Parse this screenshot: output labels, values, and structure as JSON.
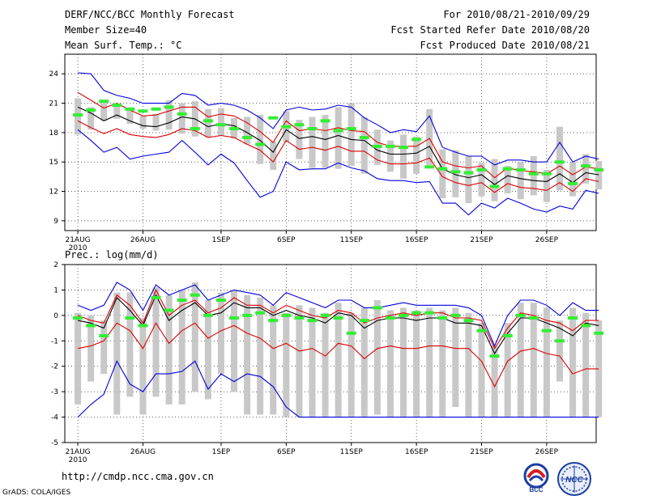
{
  "header": {
    "title": "DERF/NCC/BCC Monthly Forecast",
    "member_size": "Member Size=40",
    "variable": "Mean Surf. Temp.: °C",
    "period": "For 2010/08/21-2010/09/29",
    "started": "Fcst Started Refer Date 2010/08/20",
    "produced": "Fcst Produced Date 2010/08/21"
  },
  "precip_label": "Prec.: log(mm/d)",
  "url": "http://cmdp.ncc.cma.gov.cn",
  "credit": "GrADS: COLA/IGES",
  "logos": {
    "bcc": "BCC",
    "ncc": "NCC"
  },
  "colors": {
    "ensemble": "#000000",
    "spread": "#dd0000",
    "range": "#0000dd",
    "obs": "#33ee33",
    "box": "#c8c8c8"
  },
  "chart_data": [
    {
      "type": "line",
      "title": "Mean Surf. Temp.: °C",
      "x_labels": [
        {
          "day": 0,
          "text": "21AUG"
        },
        {
          "day": 5,
          "text": "26AUG"
        },
        {
          "day": 11,
          "text": "1SEP"
        },
        {
          "day": 16,
          "text": "6SEP"
        },
        {
          "day": 21,
          "text": "11SEP"
        },
        {
          "day": 26,
          "text": "16SEP"
        },
        {
          "day": 31,
          "text": "21SEP"
        },
        {
          "day": 36,
          "text": "26SEP"
        }
      ],
      "x_year": "2010",
      "xlim": [
        -1,
        39.8
      ],
      "ylim": [
        8,
        26
      ],
      "yticks": [
        9,
        12,
        15,
        18,
        21,
        24
      ],
      "series": [
        {
          "name": "ensemble mean",
          "values": [
            20.6,
            20.0,
            19.2,
            19.8,
            19.2,
            18.7,
            18.6,
            19.0,
            19.6,
            19.4,
            18.6,
            18.9,
            18.7,
            18.0,
            17.2,
            16.0,
            18.3,
            17.4,
            17.6,
            17.3,
            17.7,
            17.3,
            17.2,
            16.2,
            15.8,
            15.8,
            15.9,
            16.6,
            14.3,
            13.7,
            13.4,
            13.7,
            12.7,
            13.6,
            13.3,
            13.1,
            13.0,
            13.8,
            12.9,
            13.9,
            13.7
          ]
        },
        {
          "name": "upper spread",
          "values": [
            22.1,
            21.3,
            20.5,
            21.0,
            20.3,
            19.7,
            19.8,
            20.2,
            20.6,
            20.6,
            19.6,
            19.9,
            19.7,
            19.0,
            18.1,
            17.0,
            19.2,
            18.2,
            18.4,
            18.2,
            18.5,
            18.2,
            18.1,
            17.0,
            16.6,
            16.6,
            16.6,
            17.4,
            15.0,
            14.6,
            14.4,
            14.6,
            13.4,
            14.4,
            14.1,
            14.0,
            13.8,
            14.6,
            13.7,
            14.5,
            14.3
          ]
        },
        {
          "name": "lower spread",
          "values": [
            19.2,
            18.5,
            17.9,
            18.4,
            17.8,
            17.6,
            17.5,
            17.8,
            18.4,
            18.2,
            17.5,
            17.7,
            17.5,
            16.8,
            16.2,
            15.0,
            17.2,
            16.3,
            16.5,
            16.2,
            16.6,
            16.1,
            16.1,
            15.2,
            14.8,
            14.8,
            14.9,
            15.4,
            13.5,
            12.9,
            12.6,
            12.9,
            11.9,
            12.8,
            12.4,
            12.3,
            12.1,
            12.9,
            12.0,
            13.3,
            13.0
          ]
        },
        {
          "name": "max member",
          "values": [
            24.1,
            24.0,
            22.3,
            21.8,
            21.5,
            21.0,
            21.0,
            21.0,
            22.0,
            21.8,
            20.8,
            21.0,
            20.8,
            20.3,
            19.5,
            18.4,
            20.3,
            20.6,
            20.3,
            20.4,
            20.8,
            20.6,
            19.5,
            18.8,
            18.0,
            18.3,
            18.1,
            19.7,
            16.5,
            16.0,
            15.6,
            15.6,
            14.7,
            15.2,
            15.2,
            15.0,
            15.0,
            17.0,
            15.0,
            15.6,
            15.3
          ]
        },
        {
          "name": "min member",
          "values": [
            18.3,
            17.2,
            16.0,
            16.5,
            15.3,
            15.6,
            15.8,
            16.0,
            17.2,
            16.0,
            14.7,
            15.8,
            14.9,
            13.1,
            11.4,
            12.0,
            15.0,
            14.2,
            14.3,
            14.3,
            14.9,
            14.4,
            14.1,
            13.3,
            13.1,
            13.1,
            12.9,
            13.0,
            10.8,
            10.8,
            9.6,
            10.8,
            10.3,
            11.3,
            10.8,
            10.2,
            9.9,
            10.5,
            10.2,
            12.1,
            11.8
          ]
        },
        {
          "name": "observation",
          "values": [
            19.8,
            20.3,
            21.2,
            20.8,
            20.4,
            20.2,
            20.4,
            20.6,
            19.9,
            18.4,
            19.2,
            18.8,
            18.4,
            17.5,
            16.8,
            19.5,
            18.6,
            18.8,
            18.4,
            19.2,
            18.2,
            18.4,
            17.5,
            16.6,
            16.6,
            16.5,
            17.3,
            14.5,
            14.3,
            14.0,
            13.9,
            14.2,
            12.5,
            14.3,
            14.2,
            13.8,
            13.8,
            15.0,
            12.8,
            14.6,
            14.2
          ]
        }
      ],
      "boxes": [
        [
          17.8,
          21.5
        ],
        [
          18.3,
          20.6
        ],
        [
          19.2,
          21.0
        ],
        [
          19.4,
          20.8
        ],
        [
          18.9,
          20.3
        ],
        [
          18.4,
          19.7
        ],
        [
          18.2,
          19.9
        ],
        [
          18.3,
          21.3
        ],
        [
          17.9,
          21.0
        ],
        [
          17.6,
          21.2
        ],
        [
          17.5,
          20.4
        ],
        [
          17.7,
          20.5
        ],
        [
          17.4,
          19.5
        ],
        [
          16.8,
          19.6
        ],
        [
          14.8,
          19.8
        ],
        [
          14.2,
          17.1
        ],
        [
          17.0,
          20.2
        ],
        [
          15.3,
          19.3
        ],
        [
          14.4,
          19.6
        ],
        [
          14.4,
          19.8
        ],
        [
          14.3,
          20.6
        ],
        [
          14.6,
          21.0
        ],
        [
          13.8,
          19.6
        ],
        [
          14.7,
          18.3
        ],
        [
          14.0,
          17.2
        ],
        [
          13.3,
          17.8
        ],
        [
          13.8,
          17.6
        ],
        [
          14.7,
          20.4
        ],
        [
          11.3,
          16.3
        ],
        [
          11.4,
          16.2
        ],
        [
          10.8,
          15.6
        ],
        [
          11.5,
          14.9
        ],
        [
          11.0,
          15.3
        ],
        [
          11.8,
          14.6
        ],
        [
          11.2,
          15.0
        ],
        [
          11.6,
          15.6
        ],
        [
          10.9,
          14.2
        ],
        [
          12.1,
          18.6
        ],
        [
          11.5,
          15.0
        ],
        [
          12.8,
          15.8
        ],
        [
          12.2,
          15.1
        ]
      ]
    },
    {
      "type": "line",
      "title": "Prec.: log(mm/d)",
      "x_labels": [
        {
          "day": 0,
          "text": "21AUG"
        },
        {
          "day": 5,
          "text": "26AUG"
        },
        {
          "day": 11,
          "text": "1SEP"
        },
        {
          "day": 16,
          "text": "6SEP"
        },
        {
          "day": 21,
          "text": "11SEP"
        },
        {
          "day": 26,
          "text": "16SEP"
        },
        {
          "day": 31,
          "text": "21SEP"
        },
        {
          "day": 36,
          "text": "26SEP"
        }
      ],
      "x_year": "2010",
      "xlim": [
        -1,
        39.8
      ],
      "ylim": [
        -5,
        2
      ],
      "yticks": [
        -5,
        -4,
        -3,
        -2,
        -1,
        0,
        1,
        2
      ],
      "series": [
        {
          "name": "ensemble mean",
          "values": [
            -0.2,
            -0.3,
            -0.5,
            0.7,
            0.2,
            -0.4,
            0.8,
            -0.2,
            0.2,
            0.5,
            0.0,
            0.1,
            0.5,
            0.3,
            0.3,
            0.0,
            0.2,
            0.0,
            -0.1,
            -0.3,
            0.1,
            0.0,
            -0.5,
            -0.2,
            -0.1,
            -0.1,
            -0.2,
            -0.1,
            -0.1,
            -0.3,
            -0.3,
            -0.4,
            -1.5,
            -0.7,
            -0.1,
            -0.1,
            -0.3,
            -0.5,
            -0.8,
            -0.3,
            -0.4
          ]
        },
        {
          "name": "upper spread",
          "values": [
            0.0,
            -0.2,
            -0.3,
            0.8,
            0.4,
            -0.3,
            1.0,
            0.0,
            0.4,
            0.6,
            0.1,
            0.3,
            0.7,
            0.4,
            0.4,
            0.1,
            0.4,
            0.2,
            0.0,
            -0.1,
            0.2,
            0.1,
            -0.3,
            -0.1,
            0.0,
            0.1,
            0.0,
            0.1,
            0.1,
            -0.1,
            -0.1,
            -0.2,
            -1.3,
            -0.5,
            0.1,
            0.0,
            -0.2,
            -0.3,
            -0.6,
            -0.2,
            -0.2
          ]
        },
        {
          "name": "lower spread",
          "values": [
            -1.3,
            -1.2,
            -1.0,
            -0.3,
            -0.6,
            -1.3,
            -0.3,
            -1.1,
            -0.6,
            -0.3,
            -0.9,
            -0.6,
            -0.4,
            -0.7,
            -0.9,
            -1.3,
            -1.1,
            -1.4,
            -1.3,
            -1.6,
            -1.1,
            -1.2,
            -1.7,
            -1.3,
            -1.2,
            -1.3,
            -1.3,
            -1.2,
            -1.2,
            -1.3,
            -1.3,
            -1.8,
            -2.8,
            -1.8,
            -1.4,
            -1.3,
            -1.5,
            -1.6,
            -2.3,
            -2.1,
            -2.1
          ]
        },
        {
          "name": "max member",
          "values": [
            0.4,
            0.2,
            0.4,
            1.3,
            1.0,
            0.2,
            1.2,
            0.8,
            1.0,
            1.2,
            0.6,
            0.8,
            1.0,
            0.9,
            0.8,
            0.4,
            0.9,
            0.7,
            0.5,
            0.3,
            0.6,
            0.6,
            0.3,
            0.3,
            0.4,
            0.5,
            0.4,
            0.4,
            0.4,
            0.4,
            0.3,
            0.0,
            -1.2,
            0.0,
            0.6,
            0.6,
            0.4,
            0.0,
            0.5,
            0.2,
            0.2
          ]
        },
        {
          "name": "min member",
          "values": [
            -4.0,
            -3.5,
            -3.1,
            -1.8,
            -2.7,
            -3.0,
            -2.3,
            -2.3,
            -2.2,
            -1.8,
            -2.9,
            -2.3,
            -2.6,
            -2.3,
            -2.4,
            -2.8,
            -3.6,
            -4.0,
            -4.0,
            -4.0,
            -4.0,
            -4.0,
            -4.0,
            -4.0,
            -4.0,
            -4.0,
            -4.0,
            -4.0,
            -4.0,
            -4.0,
            -4.0,
            -4.0,
            -4.0,
            -4.0,
            -4.0,
            -4.0,
            -4.0,
            -4.0,
            -4.0,
            -4.0,
            -4.0
          ]
        },
        {
          "name": "observation",
          "values": [
            -0.1,
            -0.4,
            -0.8,
            null,
            -0.1,
            -0.4,
            0.7,
            0.2,
            0.6,
            0.8,
            0.0,
            0.6,
            -0.1,
            0.0,
            0.1,
            -0.2,
            0.0,
            -0.1,
            -0.2,
            0.0,
            -0.1,
            -0.7,
            -0.2,
            0.3,
            -0.1,
            0.0,
            0.1,
            0.1,
            -0.1,
            0.0,
            -0.2,
            -0.6,
            -1.6,
            -0.8,
            0.0,
            -0.1,
            -0.6,
            -1.0,
            -0.1,
            -0.4,
            -0.7
          ]
        }
      ],
      "boxes": [
        [
          -3.5,
          0.1
        ],
        [
          -2.6,
          0.0
        ],
        [
          -2.3,
          -0.2
        ],
        [
          -3.9,
          0.9
        ],
        [
          -3.2,
          0.9
        ],
        [
          -3.9,
          -0.1
        ],
        [
          -3.2,
          1.1
        ],
        [
          -3.5,
          0.8
        ],
        [
          -3.5,
          1.0
        ],
        [
          -3.0,
          1.3
        ],
        [
          -3.3,
          0.6
        ],
        [
          -2.3,
          0.9
        ],
        [
          -3.0,
          1.0
        ],
        [
          -3.9,
          0.8
        ],
        [
          -3.9,
          0.7
        ],
        [
          -3.9,
          0.4
        ],
        [
          -4.0,
          0.1
        ],
        [
          -4.0,
          0.4
        ],
        [
          -4.0,
          0.3
        ],
        [
          -4.0,
          0.1
        ],
        [
          -4.0,
          0.5
        ],
        [
          -4.0,
          0.1
        ],
        [
          -4.0,
          0.3
        ],
        [
          -3.9,
          0.6
        ],
        [
          -4.0,
          0.2
        ],
        [
          -4.0,
          0.3
        ],
        [
          -4.0,
          0.2
        ],
        [
          -4.0,
          0.3
        ],
        [
          -4.0,
          0.2
        ],
        [
          -3.6,
          0.3
        ],
        [
          -4.0,
          0.1
        ],
        [
          -4.0,
          -0.3
        ],
        [
          -4.0,
          -1.2
        ],
        [
          -4.0,
          -0.3
        ],
        [
          -4.0,
          0.5
        ],
        [
          -4.0,
          0.5
        ],
        [
          -4.0,
          0.3
        ],
        [
          -2.6,
          -0.2
        ],
        [
          -4.0,
          0.3
        ],
        [
          -4.0,
          0.1
        ],
        [
          -4.0,
          -0.2
        ]
      ]
    }
  ]
}
